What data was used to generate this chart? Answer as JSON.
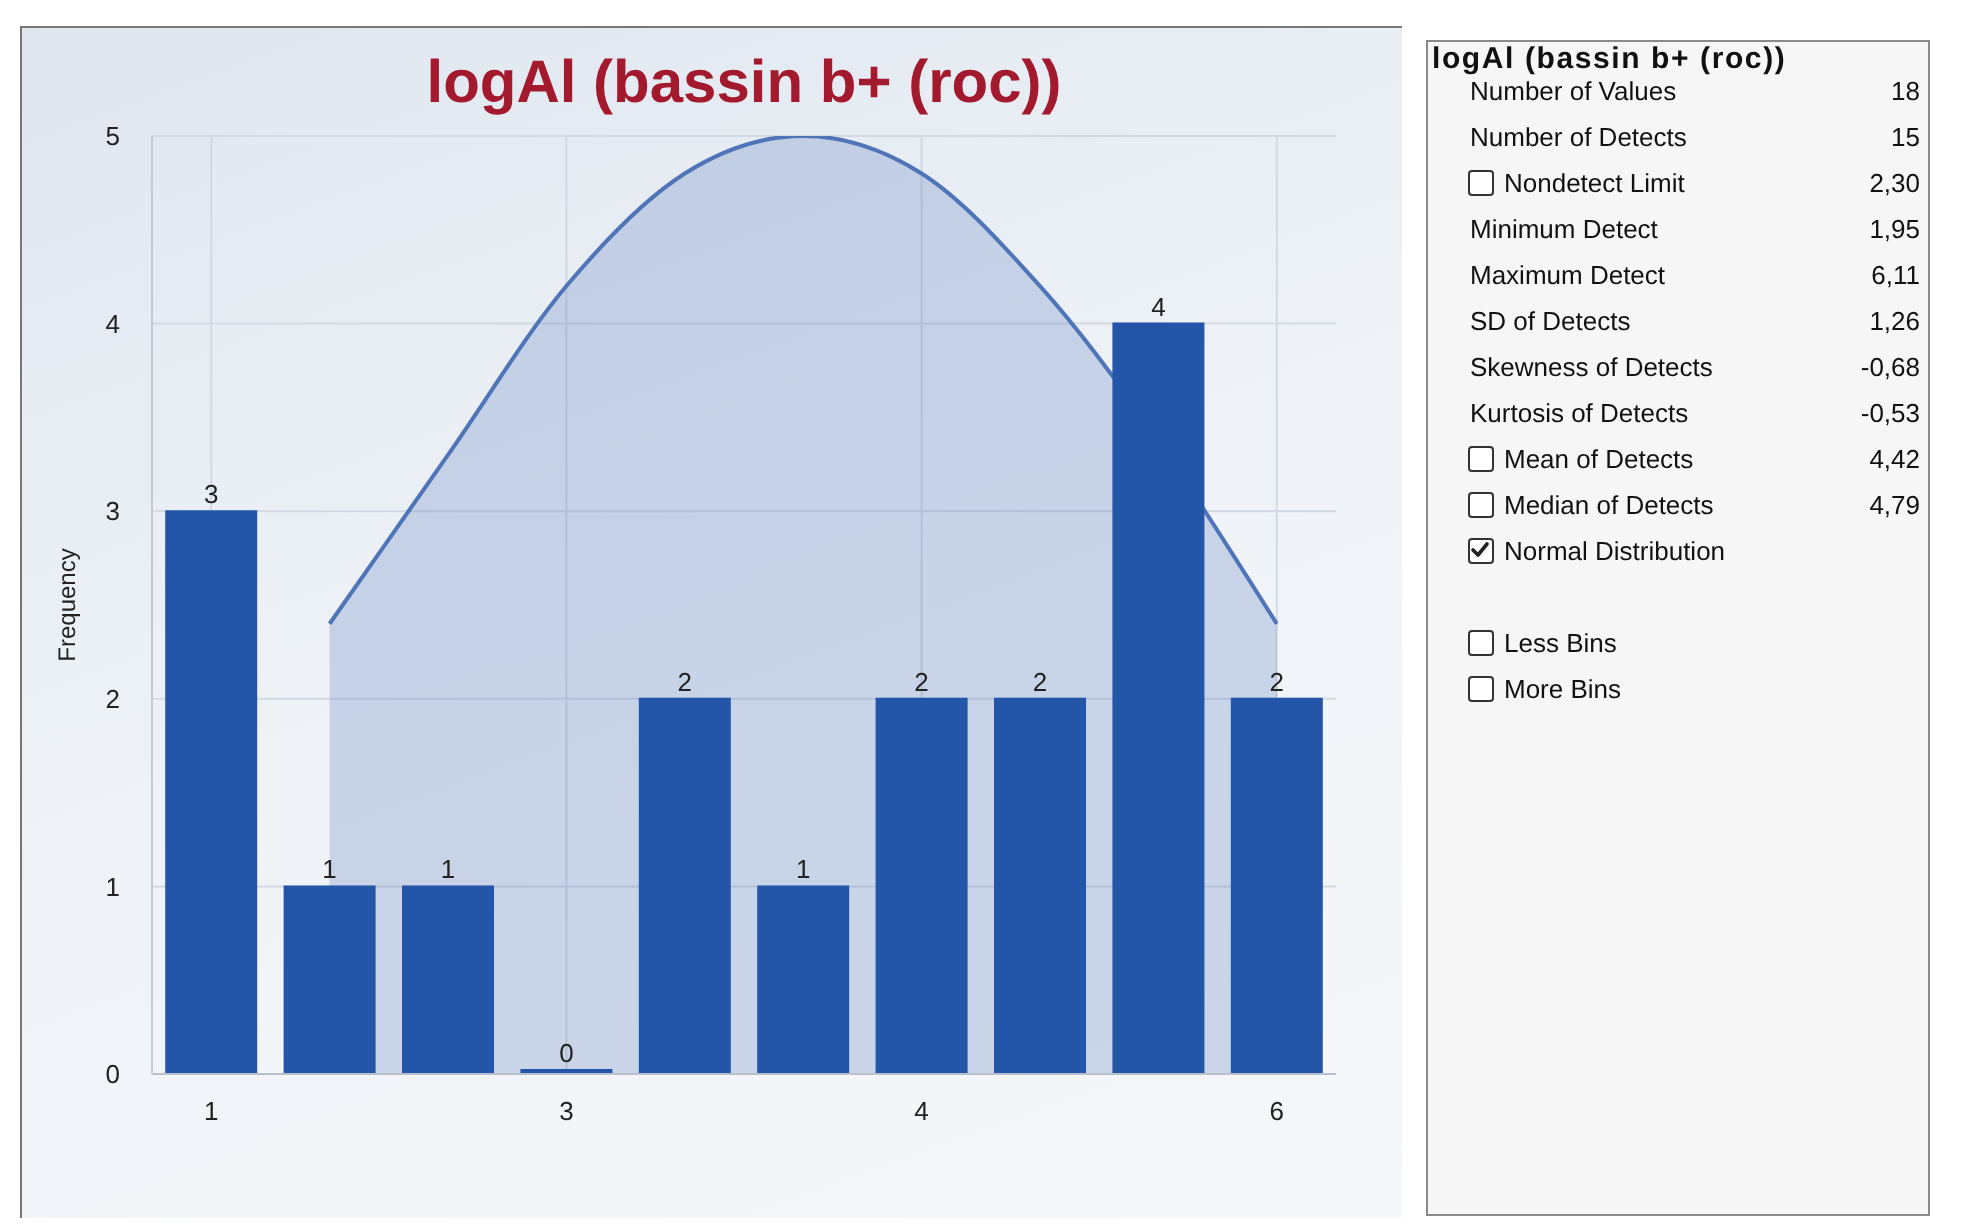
{
  "chart_data": [
    {
      "type": "bar",
      "title": "logAl (bassin b+ (roc))",
      "ylabel": "Frequency",
      "categories": [
        "1",
        null,
        null,
        "3",
        null,
        null,
        "4",
        null,
        null,
        "6"
      ],
      "series": [
        {
          "type": "area",
          "color": "#4f74b8",
          "values": [
            null,
            2.4,
            3.3,
            4.2,
            4.8,
            5,
            4.8,
            4.2,
            null,
            2.4
          ]
        },
        {
          "type": "bar",
          "color": "#2356a8",
          "values": [
            3,
            1,
            1,
            0,
            2,
            1,
            2,
            2,
            4,
            2
          ],
          "value_labels": [
            "3",
            "1",
            "1",
            "0",
            "2",
            "1",
            "2",
            "2",
            "4",
            "2"
          ]
        }
      ],
      "ylim": [
        0,
        5
      ],
      "yticks": [
        0,
        1,
        2,
        3,
        4,
        5
      ],
      "grid": true
    },
    {
      "type": "other",
      "title": "logAl (bassin b+ (roc))",
      "categories": [
        "Number of Values",
        "Number of Detects",
        "Nondetect Limit",
        "Minimum Detect",
        "Maximum Detect",
        "SD of Detects",
        "Skewness of Detects",
        "Kurtosis of Detects",
        "Mean of Detects",
        "Median of Detects",
        "Normal Distribution",
        "Less Bins",
        "More Bins"
      ],
      "value_labels": [
        "18",
        "15",
        "2,30",
        "1,95",
        "6,11",
        "1,26",
        "-0,68",
        "-0,53",
        "4,42",
        "4,79",
        null,
        null,
        null
      ]
    }
  ]
}
